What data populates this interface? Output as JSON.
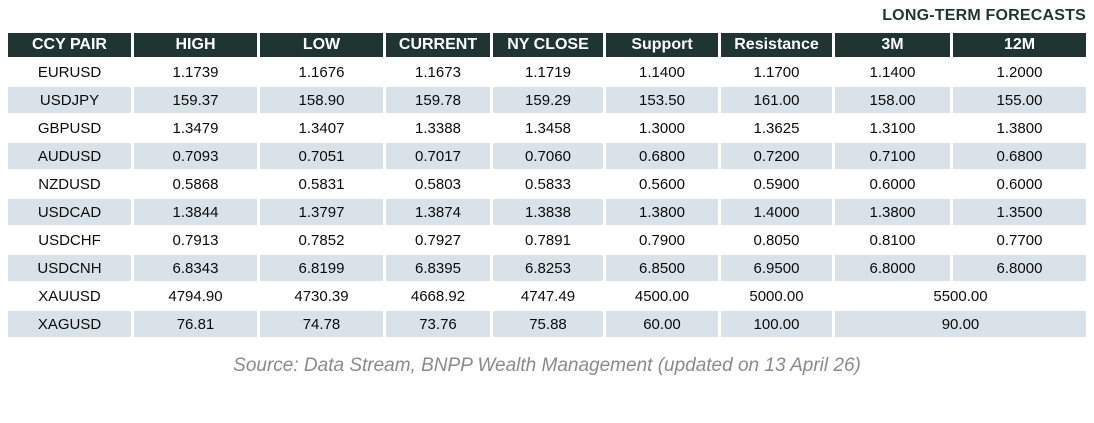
{
  "title": "LONG-TERM FORECASTS",
  "chart_data": {
    "type": "table",
    "columns": [
      "CCY PAIR",
      "HIGH",
      "LOW",
      "CURRENT",
      "NY CLOSE",
      "Support",
      "Resistance",
      "3M",
      "12M"
    ],
    "rows": [
      {
        "cells": [
          "EURUSD",
          "1.1739",
          "1.1676",
          "1.1673",
          "1.1719",
          "1.1400",
          "1.1700",
          "1.1400",
          "1.2000"
        ],
        "merged_3m_12m": false
      },
      {
        "cells": [
          "USDJPY",
          "159.37",
          "158.90",
          "159.78",
          "159.29",
          "153.50",
          "161.00",
          "158.00",
          "155.00"
        ],
        "merged_3m_12m": false
      },
      {
        "cells": [
          "GBPUSD",
          "1.3479",
          "1.3407",
          "1.3388",
          "1.3458",
          "1.3000",
          "1.3625",
          "1.3100",
          "1.3800"
        ],
        "merged_3m_12m": false
      },
      {
        "cells": [
          "AUDUSD",
          "0.7093",
          "0.7051",
          "0.7017",
          "0.7060",
          "0.6800",
          "0.7200",
          "0.7100",
          "0.6800"
        ],
        "merged_3m_12m": false
      },
      {
        "cells": [
          "NZDUSD",
          "0.5868",
          "0.5831",
          "0.5803",
          "0.5833",
          "0.5600",
          "0.5900",
          "0.6000",
          "0.6000"
        ],
        "merged_3m_12m": false
      },
      {
        "cells": [
          "USDCAD",
          "1.3844",
          "1.3797",
          "1.3874",
          "1.3838",
          "1.3800",
          "1.4000",
          "1.3800",
          "1.3500"
        ],
        "merged_3m_12m": false
      },
      {
        "cells": [
          "USDCHF",
          "0.7913",
          "0.7852",
          "0.7927",
          "0.7891",
          "0.7900",
          "0.8050",
          "0.8100",
          "0.7700"
        ],
        "merged_3m_12m": false
      },
      {
        "cells": [
          "USDCNH",
          "6.8343",
          "6.8199",
          "6.8395",
          "6.8253",
          "6.8500",
          "6.9500",
          "6.8000",
          "6.8000"
        ],
        "merged_3m_12m": false
      },
      {
        "cells": [
          "XAUUSD",
          "4794.90",
          "4730.39",
          "4668.92",
          "4747.49",
          "4500.00",
          "5000.00",
          "5500.00"
        ],
        "merged_3m_12m": true
      },
      {
        "cells": [
          "XAGUSD",
          "76.81",
          "74.78",
          "73.76",
          "75.88",
          "60.00",
          "100.00",
          "90.00"
        ],
        "merged_3m_12m": true
      }
    ]
  },
  "footer": {
    "source_text": "Source: Data Stream, BNPP Wealth Management (updated on 13 April 26)"
  },
  "colors": {
    "header_bg": "#1e3532",
    "header_text": "#ffffff",
    "row_shaded": "#d9e2e8",
    "row_plain": "#ffffff",
    "title_text": "#1e3532",
    "footer_text": "#8a8a8a"
  }
}
